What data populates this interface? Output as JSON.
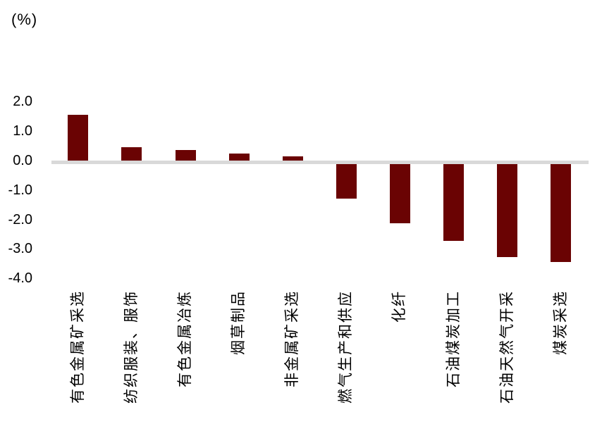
{
  "colors": {
    "bar": "#6A0303",
    "zero_line": "#D9D9D9",
    "text": "#000000"
  },
  "chart_data": {
    "type": "bar",
    "title": "",
    "xlabel": "",
    "ylabel": "(%)",
    "categories": [
      "有色金属矿采选",
      "纺织服装、服饰",
      "有色金属冶炼",
      "烟草制品",
      "非金属矿采选",
      "燃气生产和供应",
      "化纤",
      "石油煤炭加工",
      "石油天然气开采",
      "煤炭采选"
    ],
    "values": [
      1.55,
      0.45,
      0.35,
      0.25,
      0.15,
      -1.25,
      -2.1,
      -2.7,
      -3.25,
      -3.4
    ],
    "ylim": [
      -4.0,
      2.0
    ],
    "yticks": [
      2.0,
      1.0,
      0.0,
      -1.0,
      -2.0,
      -3.0,
      -4.0
    ],
    "ytick_labels": [
      "2.0",
      "1.0",
      "0.0",
      "-1.0",
      "-2.0",
      "-3.0",
      "-4.0"
    ],
    "grid": false,
    "legend": false,
    "bar_color": "#6A0303",
    "x_label_rotation": -90
  }
}
